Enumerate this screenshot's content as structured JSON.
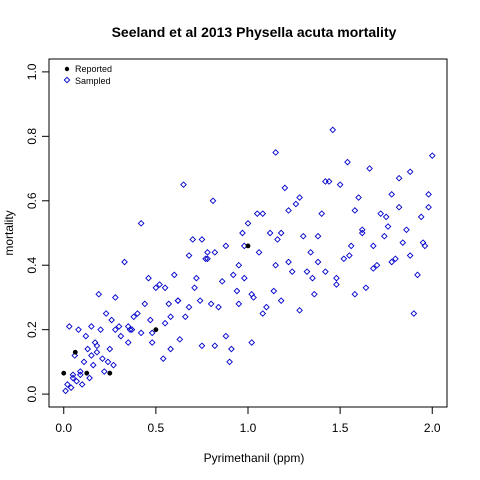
{
  "chart_data": {
    "type": "scatter",
    "title": "Seeland et al 2013 Physella acuta mortality",
    "xlabel": "Pyrimethanil (ppm)",
    "ylabel": "mortality",
    "xlim": [
      -0.08,
      2.08
    ],
    "ylim": [
      -0.04,
      1.04
    ],
    "xticks": [
      0.0,
      0.5,
      1.0,
      1.5,
      2.0
    ],
    "xtick_labels": [
      "0.0",
      "0.5",
      "1.0",
      "1.5",
      "2.0"
    ],
    "yticks": [
      0.0,
      0.2,
      0.4,
      0.6,
      0.8,
      1.0
    ],
    "ytick_labels": [
      "0.0",
      "0.2",
      "0.4",
      "0.6",
      "0.8",
      "1.0"
    ],
    "grid": false,
    "legend": {
      "position": "top-left",
      "entries": [
        "Reported",
        "Sampled"
      ]
    },
    "series": [
      {
        "name": "Reported",
        "marker": "filled-circle",
        "color": "#000000",
        "x": [
          0.0,
          0.0625,
          0.125,
          0.25,
          0.5,
          1.0
        ],
        "y": [
          0.065,
          0.13,
          0.065,
          0.065,
          0.2,
          0.46
        ]
      },
      {
        "name": "Sampled",
        "marker": "open-diamond",
        "color": "#0000cc",
        "x": [
          0.01,
          0.02,
          0.03,
          0.04,
          0.05,
          0.06,
          0.07,
          0.08,
          0.09,
          0.1,
          0.11,
          0.12,
          0.13,
          0.14,
          0.15,
          0.16,
          0.17,
          0.18,
          0.19,
          0.2,
          0.21,
          0.22,
          0.23,
          0.24,
          0.25,
          0.26,
          0.27,
          0.28,
          0.3,
          0.31,
          0.33,
          0.35,
          0.37,
          0.38,
          0.4,
          0.42,
          0.44,
          0.46,
          0.47,
          0.48,
          0.5,
          0.52,
          0.54,
          0.55,
          0.57,
          0.58,
          0.6,
          0.62,
          0.63,
          0.65,
          0.66,
          0.68,
          0.7,
          0.71,
          0.72,
          0.74,
          0.75,
          0.77,
          0.78,
          0.8,
          0.81,
          0.82,
          0.84,
          0.86,
          0.88,
          0.9,
          0.91,
          0.92,
          0.94,
          0.95,
          0.97,
          0.98,
          1.0,
          1.02,
          1.03,
          1.05,
          1.06,
          1.08,
          1.1,
          1.12,
          1.14,
          1.15,
          1.16,
          1.18,
          1.2,
          1.22,
          1.24,
          1.26,
          1.28,
          1.3,
          1.32,
          1.34,
          1.36,
          1.38,
          1.4,
          1.42,
          1.44,
          1.46,
          1.48,
          1.5,
          1.52,
          1.54,
          1.56,
          1.58,
          1.6,
          1.62,
          1.64,
          1.66,
          1.68,
          1.7,
          1.72,
          1.74,
          1.76,
          1.78,
          1.8,
          1.82,
          1.84,
          1.86,
          1.88,
          1.9,
          1.92,
          1.94,
          1.96,
          1.98,
          2.0,
          0.15,
          0.35,
          0.55,
          0.75,
          0.95,
          1.15,
          1.35,
          1.55,
          1.75,
          1.95,
          0.42,
          0.62,
          0.82,
          1.02,
          1.22,
          1.42,
          1.62,
          1.82,
          0.28,
          0.48,
          0.68,
          0.88,
          1.08,
          1.28,
          1.48,
          1.68,
          1.88,
          0.05,
          0.09,
          0.18,
          0.36,
          0.58,
          0.78,
          0.98,
          1.18,
          1.38,
          1.58,
          1.78,
          1.98
        ],
        "y": [
          0.01,
          0.03,
          0.21,
          0.02,
          0.05,
          0.12,
          0.04,
          0.2,
          0.07,
          0.03,
          0.1,
          0.18,
          0.14,
          0.05,
          0.21,
          0.09,
          0.16,
          0.13,
          0.31,
          0.2,
          0.11,
          0.07,
          0.25,
          0.1,
          0.14,
          0.23,
          0.09,
          0.2,
          0.21,
          0.18,
          0.41,
          0.16,
          0.2,
          0.24,
          0.25,
          0.19,
          0.28,
          0.36,
          0.23,
          0.16,
          0.33,
          0.34,
          0.11,
          0.22,
          0.28,
          0.14,
          0.37,
          0.29,
          0.17,
          0.65,
          0.24,
          0.43,
          0.48,
          0.33,
          0.36,
          0.29,
          0.15,
          0.42,
          0.44,
          0.28,
          0.6,
          0.15,
          0.27,
          0.35,
          0.46,
          0.1,
          0.14,
          0.37,
          0.32,
          0.4,
          0.5,
          0.36,
          0.53,
          0.16,
          0.3,
          0.56,
          0.44,
          0.25,
          0.27,
          0.5,
          0.32,
          0.75,
          0.48,
          0.29,
          0.64,
          0.41,
          0.38,
          0.59,
          0.26,
          0.49,
          0.38,
          0.44,
          0.31,
          0.49,
          0.56,
          0.38,
          0.66,
          0.82,
          0.36,
          0.65,
          0.42,
          0.72,
          0.46,
          0.31,
          0.61,
          0.5,
          0.33,
          0.7,
          0.46,
          0.4,
          0.56,
          0.49,
          0.52,
          0.62,
          0.42,
          0.58,
          0.47,
          0.51,
          0.43,
          0.25,
          0.37,
          0.55,
          0.46,
          0.58,
          0.74,
          0.12,
          0.21,
          0.33,
          0.48,
          0.28,
          0.4,
          0.36,
          0.43,
          0.55,
          0.47,
          0.53,
          0.29,
          0.44,
          0.31,
          0.57,
          0.66,
          0.51,
          0.67,
          0.3,
          0.19,
          0.27,
          0.18,
          0.56,
          0.61,
          0.34,
          0.39,
          0.69,
          0.06,
          0.06,
          0.15,
          0.2,
          0.24,
          0.42,
          0.46,
          0.5,
          0.41,
          0.57,
          0.41,
          0.62
        ]
      }
    ]
  }
}
